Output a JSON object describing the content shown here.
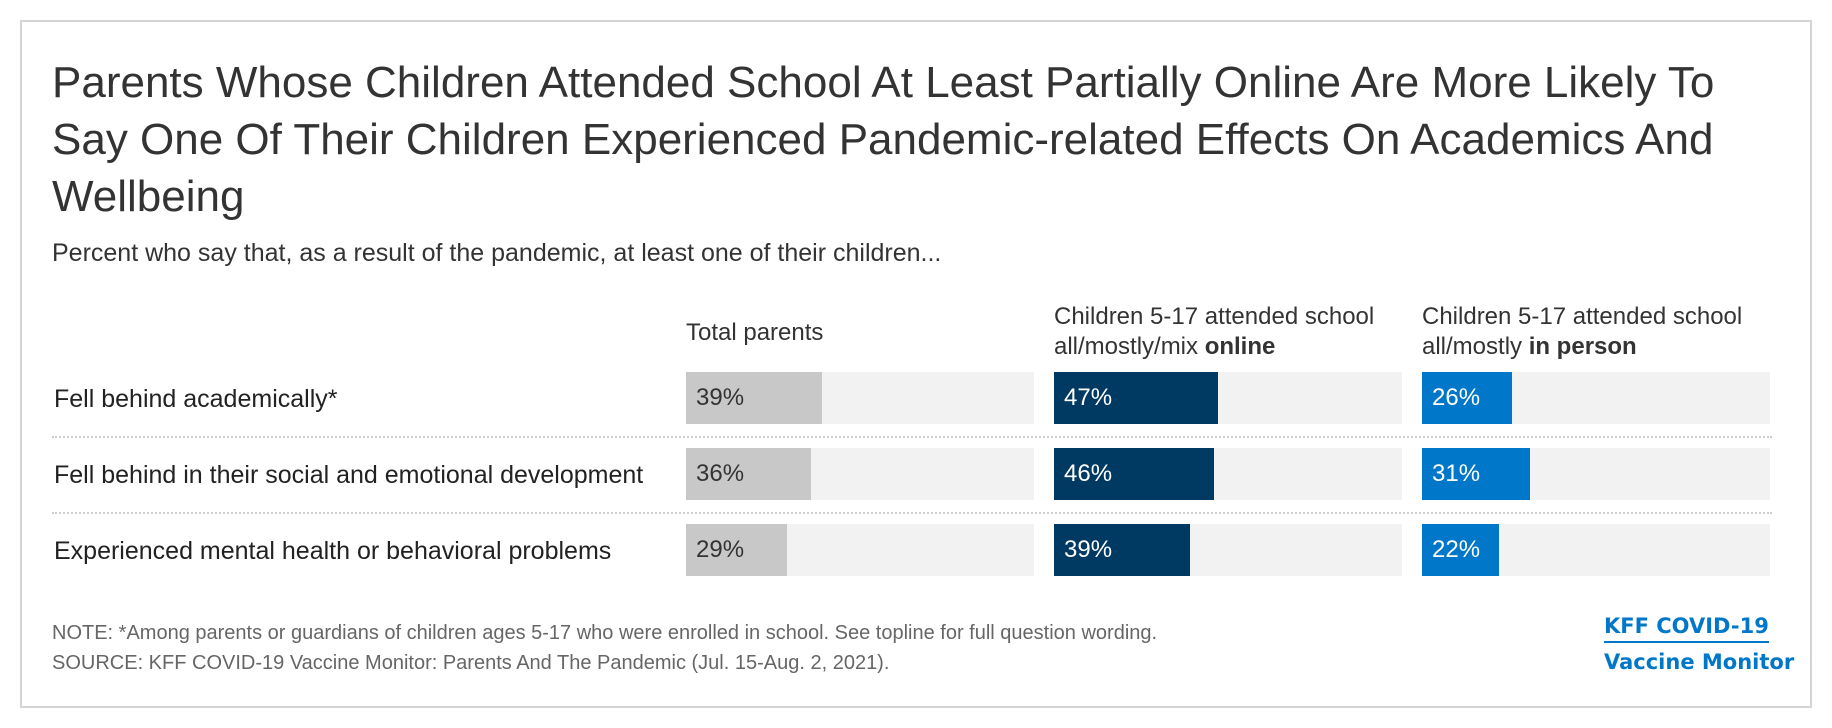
{
  "chart_data": {
    "type": "bar",
    "orientation": "horizontal",
    "title": "Parents Whose Children Attended School At Least Partially Online Are More Likely To Say One Of Their Children Experienced Pandemic-related Effects On Academics And Wellbeing",
    "subtitle": "Percent who say that, as a result of the pandemic, at least one of their children...",
    "categories": [
      "Fell behind academically*",
      "Fell behind in their social and emotional development",
      "Experienced mental health or behavioral problems"
    ],
    "xlim": [
      0,
      100
    ],
    "series": [
      {
        "name": "Total parents",
        "name_prefix": "Total parents",
        "name_bold": "",
        "values": [
          39,
          36,
          29
        ],
        "labels": [
          "39%",
          "36%",
          "29%"
        ],
        "color": "#c8c8c8",
        "label_color": "#333333"
      },
      {
        "name": "Children 5-17 attended school all/mostly/mix online",
        "name_prefix": "Children 5-17 attended school all/mostly/mix ",
        "name_bold": "online",
        "values": [
          47,
          46,
          39
        ],
        "labels": [
          "47%",
          "46%",
          "39%"
        ],
        "color": "#003a63",
        "label_color": "#ffffff"
      },
      {
        "name": "Children 5-17 attended school all/mostly in person",
        "name_prefix": "Children 5-17 attended school all/mostly ",
        "name_bold": "in person",
        "values": [
          26,
          31,
          22
        ],
        "labels": [
          "26%",
          "31%",
          "22%"
        ],
        "color": "#0077c8",
        "label_color": "#ffffff"
      }
    ],
    "track_color": "#f2f2f2"
  },
  "footer": {
    "note": "NOTE: *Among parents or guardians of children ages 5-17 who were enrolled in school. See topline for full question wording.",
    "source": "SOURCE: KFF COVID-19 Vaccine Monitor: Parents And The Pandemic (Jul. 15-Aug. 2, 2021).",
    "logo_line1": "KFF COVID-19",
    "logo_line2": "Vaccine Monitor"
  }
}
